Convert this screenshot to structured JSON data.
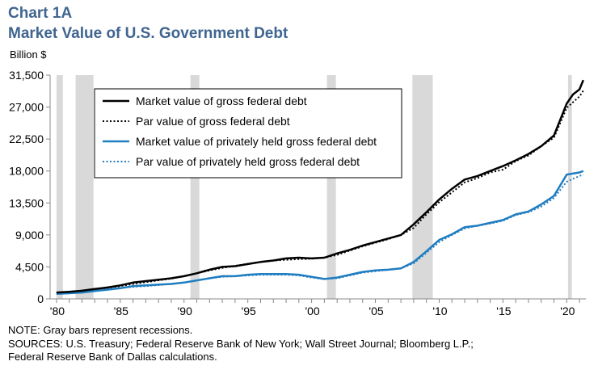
{
  "header": {
    "chart_number": "Chart 1A",
    "title": "Market Value of U.S. Government Debt",
    "unit_label": "Billion $"
  },
  "footer": {
    "note": "NOTE: Gray bars represent recessions.",
    "sources_line1": "SOURCES: U.S. Treasury; Federal Reserve Bank of New York; Wall Street Journal; Bloomberg L.P.;",
    "sources_line2": "Federal Reserve Bank of Dallas calculations."
  },
  "colors": {
    "title": "#3f6590",
    "black_series": "#000000",
    "blue_series": "#1f7dc0",
    "recession": "#d9d9d9",
    "axis": "#888888"
  },
  "chart_data": {
    "type": "line",
    "xlim": [
      1979.5,
      2021.5
    ],
    "ylim": [
      0,
      31500
    ],
    "y_ticks": [
      0,
      4500,
      9000,
      13500,
      18000,
      22500,
      27000,
      31500
    ],
    "y_tick_labels": [
      "0",
      "4,500",
      "9,000",
      "13,500",
      "18,000",
      "22,500",
      "27,000",
      "31,500"
    ],
    "x_ticks": [
      1980,
      1985,
      1990,
      1995,
      2000,
      2005,
      2010,
      2015,
      2020
    ],
    "x_tick_labels": [
      "'80",
      "'85",
      "'90",
      "'95",
      "'00",
      "'05",
      "'10",
      "'15",
      "'20"
    ],
    "recessions": [
      [
        1980.0,
        1980.5
      ],
      [
        1981.5,
        1982.9
      ],
      [
        1990.5,
        1991.2
      ],
      [
        2001.2,
        2001.9
      ],
      [
        2007.9,
        2009.5
      ],
      [
        2020.1,
        2020.4
      ]
    ],
    "legend_position": "top-center",
    "series": [
      {
        "name": "Market value of gross federal debt",
        "color": "#000000",
        "style": "solid",
        "points": [
          [
            1980,
            900
          ],
          [
            1981,
            1000
          ],
          [
            1982,
            1150
          ],
          [
            1983,
            1400
          ],
          [
            1984,
            1600
          ],
          [
            1985,
            1900
          ],
          [
            1986,
            2300
          ],
          [
            1987,
            2500
          ],
          [
            1988,
            2700
          ],
          [
            1989,
            2900
          ],
          [
            1990,
            3200
          ],
          [
            1991,
            3600
          ],
          [
            1992,
            4100
          ],
          [
            1993,
            4500
          ],
          [
            1994,
            4600
          ],
          [
            1995,
            4900
          ],
          [
            1996,
            5200
          ],
          [
            1997,
            5400
          ],
          [
            1998,
            5700
          ],
          [
            1999,
            5800
          ],
          [
            2000,
            5700
          ],
          [
            2001,
            5800
          ],
          [
            2002,
            6400
          ],
          [
            2003,
            6900
          ],
          [
            2004,
            7500
          ],
          [
            2005,
            8000
          ],
          [
            2006,
            8500
          ],
          [
            2007,
            9000
          ],
          [
            2008,
            10500
          ],
          [
            2009,
            12200
          ],
          [
            2010,
            14000
          ],
          [
            2011,
            15500
          ],
          [
            2012,
            16800
          ],
          [
            2013,
            17300
          ],
          [
            2014,
            18000
          ],
          [
            2015,
            18700
          ],
          [
            2016,
            19500
          ],
          [
            2017,
            20400
          ],
          [
            2018,
            21500
          ],
          [
            2019,
            23000
          ],
          [
            2020,
            27500
          ],
          [
            2020.5,
            28800
          ],
          [
            2021,
            29500
          ],
          [
            2021.3,
            30800
          ]
        ]
      },
      {
        "name": "Par value of gross federal debt",
        "color": "#000000",
        "style": "dotted",
        "points": [
          [
            1980,
            850
          ],
          [
            1981,
            1000
          ],
          [
            1982,
            1150
          ],
          [
            1983,
            1350
          ],
          [
            1984,
            1550
          ],
          [
            1985,
            1800
          ],
          [
            1986,
            2100
          ],
          [
            1987,
            2350
          ],
          [
            1988,
            2600
          ],
          [
            1989,
            2850
          ],
          [
            1990,
            3200
          ],
          [
            1991,
            3600
          ],
          [
            1992,
            4000
          ],
          [
            1993,
            4350
          ],
          [
            1994,
            4650
          ],
          [
            1995,
            4950
          ],
          [
            1996,
            5200
          ],
          [
            1997,
            5400
          ],
          [
            1998,
            5500
          ],
          [
            1999,
            5600
          ],
          [
            2000,
            5650
          ],
          [
            2001,
            5800
          ],
          [
            2002,
            6200
          ],
          [
            2003,
            6800
          ],
          [
            2004,
            7400
          ],
          [
            2005,
            7900
          ],
          [
            2006,
            8400
          ],
          [
            2007,
            9000
          ],
          [
            2008,
            10000
          ],
          [
            2009,
            11900
          ],
          [
            2010,
            13600
          ],
          [
            2011,
            15000
          ],
          [
            2012,
            16400
          ],
          [
            2013,
            17000
          ],
          [
            2014,
            17800
          ],
          [
            2015,
            18200
          ],
          [
            2016,
            19400
          ],
          [
            2017,
            20200
          ],
          [
            2018,
            21500
          ],
          [
            2019,
            22700
          ],
          [
            2020,
            26900
          ],
          [
            2021,
            28500
          ],
          [
            2021.3,
            29300
          ]
        ]
      },
      {
        "name": "Market value of privately held gross federal debt",
        "color": "#1f7dc0",
        "style": "solid",
        "points": [
          [
            1980,
            700
          ],
          [
            1981,
            800
          ],
          [
            1982,
            900
          ],
          [
            1983,
            1100
          ],
          [
            1984,
            1300
          ],
          [
            1985,
            1500
          ],
          [
            1986,
            1800
          ],
          [
            1987,
            1900
          ],
          [
            1988,
            2000
          ],
          [
            1989,
            2100
          ],
          [
            1990,
            2300
          ],
          [
            1991,
            2600
          ],
          [
            1992,
            2900
          ],
          [
            1993,
            3200
          ],
          [
            1994,
            3200
          ],
          [
            1995,
            3400
          ],
          [
            1996,
            3500
          ],
          [
            1997,
            3500
          ],
          [
            1998,
            3500
          ],
          [
            1999,
            3400
          ],
          [
            2000,
            3100
          ],
          [
            2001,
            2800
          ],
          [
            2002,
            3000
          ],
          [
            2003,
            3400
          ],
          [
            2004,
            3800
          ],
          [
            2005,
            4000
          ],
          [
            2006,
            4100
          ],
          [
            2007,
            4300
          ],
          [
            2008,
            5200
          ],
          [
            2009,
            6700
          ],
          [
            2010,
            8300
          ],
          [
            2011,
            9100
          ],
          [
            2012,
            10100
          ],
          [
            2013,
            10300
          ],
          [
            2014,
            10700
          ],
          [
            2015,
            11100
          ],
          [
            2016,
            11900
          ],
          [
            2017,
            12300
          ],
          [
            2018,
            13300
          ],
          [
            2019,
            14500
          ],
          [
            2020,
            17500
          ],
          [
            2021,
            17800
          ],
          [
            2021.3,
            18000
          ]
        ]
      },
      {
        "name": "Par value of privately held gross federal debt",
        "color": "#1f7dc0",
        "style": "dotted",
        "points": [
          [
            1980,
            680
          ],
          [
            1981,
            780
          ],
          [
            1982,
            900
          ],
          [
            1983,
            1100
          ],
          [
            1984,
            1300
          ],
          [
            1985,
            1500
          ],
          [
            1986,
            1700
          ],
          [
            1987,
            1800
          ],
          [
            1988,
            1950
          ],
          [
            1989,
            2100
          ],
          [
            1990,
            2300
          ],
          [
            1991,
            2600
          ],
          [
            1992,
            2900
          ],
          [
            1993,
            3100
          ],
          [
            1994,
            3200
          ],
          [
            1995,
            3300
          ],
          [
            1996,
            3400
          ],
          [
            1997,
            3400
          ],
          [
            1998,
            3400
          ],
          [
            1999,
            3300
          ],
          [
            2000,
            3000
          ],
          [
            2001,
            2800
          ],
          [
            2002,
            2900
          ],
          [
            2003,
            3300
          ],
          [
            2004,
            3700
          ],
          [
            2005,
            3900
          ],
          [
            2006,
            4100
          ],
          [
            2007,
            4300
          ],
          [
            2008,
            5000
          ],
          [
            2009,
            6500
          ],
          [
            2010,
            8000
          ],
          [
            2011,
            9000
          ],
          [
            2012,
            9900
          ],
          [
            2013,
            10300
          ],
          [
            2014,
            10600
          ],
          [
            2015,
            11000
          ],
          [
            2016,
            11800
          ],
          [
            2017,
            12200
          ],
          [
            2018,
            13000
          ],
          [
            2019,
            14200
          ],
          [
            2020,
            16500
          ],
          [
            2021,
            17300
          ],
          [
            2021.3,
            17500
          ]
        ]
      }
    ]
  }
}
